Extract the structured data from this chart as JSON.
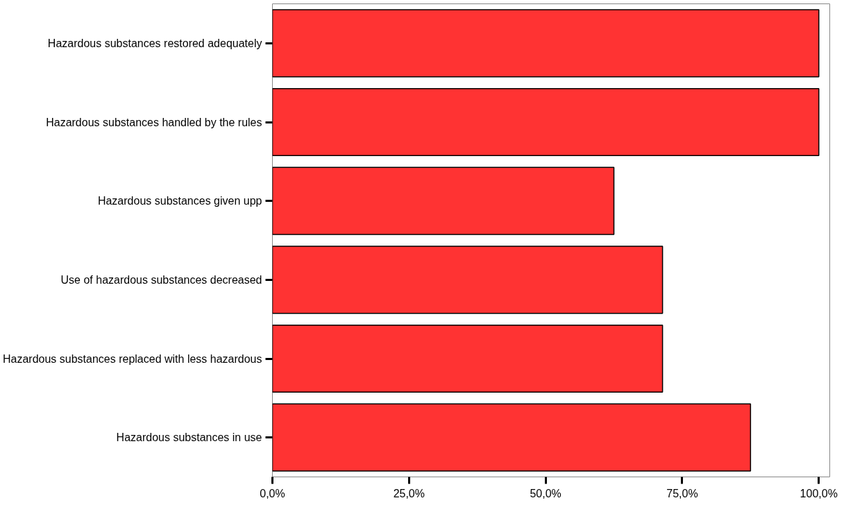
{
  "chart_data": {
    "type": "bar",
    "orientation": "horizontal",
    "categories": [
      "Hazardous substances restored adequately",
      "Hazardous substances handled by the rules",
      "Hazardous substances given upp",
      "Use of hazardous substances decreased",
      "Hazardous substances replaced with less hazardous",
      "Hazardous substances in use"
    ],
    "values": [
      100,
      100,
      62.5,
      71.4,
      71.4,
      87.5
    ],
    "color": "#ff3333",
    "xlim": [
      0,
      102
    ],
    "xticks": [
      {
        "value": 0,
        "label": "0,0%"
      },
      {
        "value": 25,
        "label": "25,0%"
      },
      {
        "value": 50,
        "label": "50,0%"
      },
      {
        "value": 75,
        "label": "75,0%"
      },
      {
        "value": 100,
        "label": "100,0%"
      }
    ],
    "grid": false
  }
}
